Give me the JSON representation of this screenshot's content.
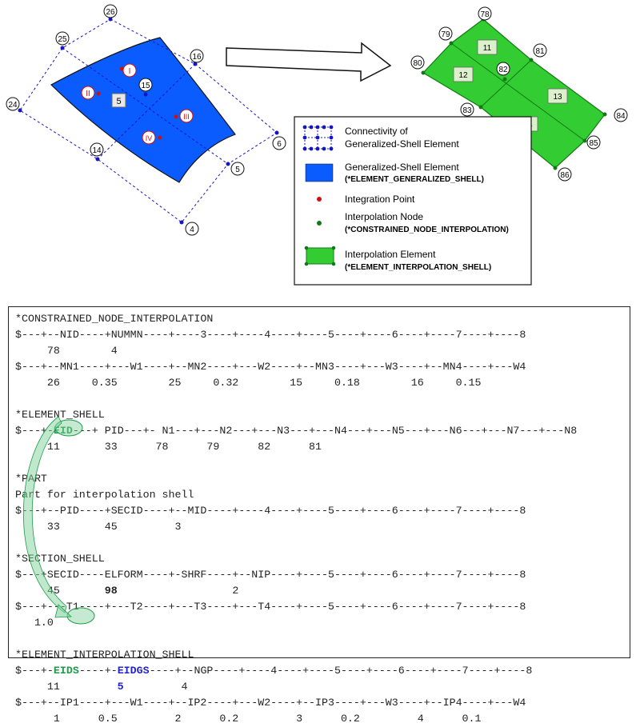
{
  "colors": {
    "shell_blue": "#0a5cff",
    "interp_green": "#33cc33",
    "node_blue": "#1414c8",
    "int_point_red": "#cc1111",
    "interp_node_green": "#127a12",
    "highlight_green": "#1e9a4a",
    "eidgs_blue": "#2424c8"
  },
  "left_nodes": [
    "26",
    "25",
    "16",
    "24",
    "15",
    "6",
    "14",
    "5",
    "4"
  ],
  "shell_label": "5",
  "integration_points": [
    "I",
    "II",
    "III",
    "IV"
  ],
  "right_nodes": [
    "78",
    "79",
    "81",
    "80",
    "82",
    "84",
    "83",
    "85",
    "86"
  ],
  "interp_elements": [
    "11",
    "12",
    "13",
    "14"
  ],
  "legend": {
    "items": [
      {
        "icon": "connectivity-icon",
        "line1": "Connectivity of",
        "line2": "Generalized-Shell Element"
      },
      {
        "icon": "generalized-shell-icon",
        "line1": "Generalized-Shell Element",
        "line2": "(*ELEMENT_GENERALIZED_SHELL)"
      },
      {
        "icon": "integration-point-icon",
        "line1": "Integration Point",
        "line2": ""
      },
      {
        "icon": "interpolation-node-icon",
        "line1": "Interpolation Node",
        "line2": "(*CONSTRAINED_NODE_INTERPOLATION)"
      },
      {
        "icon": "interpolation-element-icon",
        "line1": "Interpolation Element",
        "line2": "(*ELEMENT_INTERPOLATION_SHELL)"
      }
    ]
  },
  "deck": {
    "cni_keyword": "*CONSTRAINED_NODE_INTERPOLATION",
    "cni_header1": "$---+--NID----+NUMMN----+----3----+----4----+----5----+----6----+----7----+----8",
    "cni_row1": "     78        4",
    "cni_header2": "$---+--MN1----+---W1----+--MN2----+---W2----+--MN3----+---W3----+--MN4----+---W4",
    "cni_row2": "     26     0.35        25     0.32        15     0.18        16     0.15",
    "es_keyword": "*ELEMENT_SHELL",
    "es_header_a": "$---+-",
    "es_header_eid": "EID",
    "es_header_b": "---+ PID---+- N1---+---N2---+---N3---+---N4---+---N5---+---N6---+---N7---+---N8",
    "es_row": "     11       33      78      79      82      81",
    "part_keyword": "*PART",
    "part_title": "Part for interpolation shell",
    "part_header": "$---+--PID----+SECID----+--MID----+----4----+----5----+----6----+----7----+----8",
    "part_row": "     33       45         3",
    "ss_keyword": "*SECTION_SHELL",
    "ss_header1": "$---+SECID----ELFORM----+-SHRF----+--NIP----+----5----+----6----+----7----+----8",
    "ss_row1_a": "     45       ",
    "ss_row1_elform": "98",
    "ss_row1_b": "                  2",
    "ss_header2": "$---+---T1----+---T2----+---T3----+---T4----+----5----+----6----+----7----+----8",
    "ss_row2": "   1.0",
    "eis_keyword": "*ELEMENT_INTERPOLATION_SHELL",
    "eis_header_a": "$---+-",
    "eis_header_eids": "EIDS",
    "eis_header_b": "----+-",
    "eis_header_eidgs": "EIDGS",
    "eis_header_c": "----+--NGP----+----4----+----5----+----6----+----7----+----8",
    "eis_row_a": "     11         ",
    "eis_row_eidgs": "5",
    "eis_row_b": "         4",
    "eis_header2": "$---+--IP1----+---W1----+--IP2----+---W2----+--IP3----+---W3----+--IP4----+---W4",
    "eis_row2": "      1      0.5         2      0.2         3      0.2         4      0.1"
  }
}
